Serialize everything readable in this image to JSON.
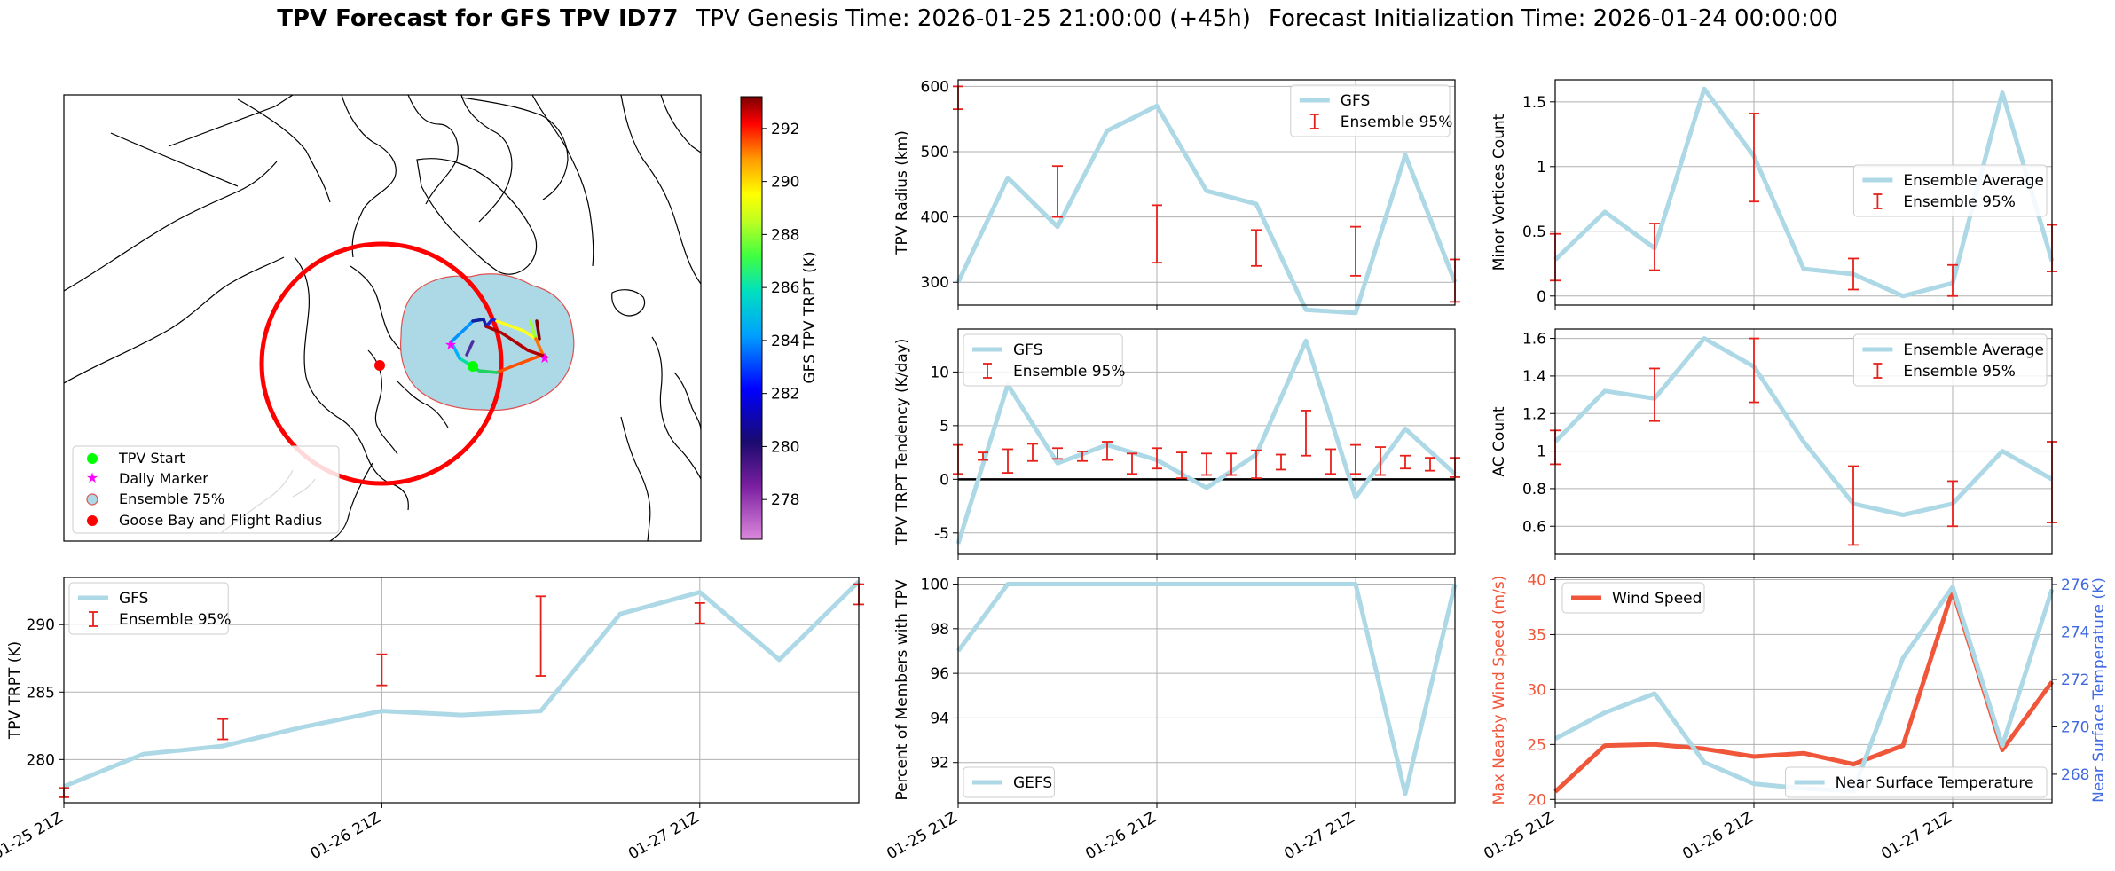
{
  "figure": {
    "title_bold": "TPV Forecast for GFS TPV ID77",
    "title_genesis": "TPV Genesis Time: 2026-01-25 21:00:00 (+45h)",
    "title_init": "Forecast Initialization Time: 2026-01-24 00:00:00"
  },
  "time_ticks": [
    "01-25 21Z",
    "01-26 21Z",
    "01-27 21Z"
  ],
  "map": {
    "colorbar_label": "GFS TPV TRPT (K)",
    "colorbar_ticks": [
      278,
      280,
      282,
      284,
      286,
      288,
      290,
      292
    ],
    "colorbar_range": [
      276.5,
      293.2
    ],
    "legend": [
      "TPV Start",
      "Daily Marker",
      "Ensemble 75%",
      "Goose Bay and Flight Radius"
    ],
    "colors": {
      "start": "#00ff00",
      "daily": "#ff00ff",
      "ensemble_fill": "#add8e6",
      "goose": "#ff0000"
    }
  },
  "chart_data": [
    {
      "id": "radius",
      "type": "line",
      "ylabel": "TPV Radius (km)",
      "ylim": [
        265,
        610
      ],
      "yticks": [
        300,
        400,
        500,
        600
      ],
      "x": [
        0,
        1,
        2,
        3,
        4,
        5,
        6,
        7,
        8,
        9,
        10
      ],
      "series": [
        {
          "name": "GFS",
          "values": [
            300,
            460,
            385,
            532,
            570,
            440,
            420,
            258,
            253,
            495,
            300
          ]
        }
      ],
      "errorbars": {
        "name": "Ensemble 95%",
        "x": [
          0,
          2,
          4,
          6,
          8,
          10
        ],
        "low": [
          565,
          400,
          330,
          325,
          310,
          270
        ],
        "high": [
          600,
          478,
          418,
          380,
          385,
          335
        ]
      },
      "legend": [
        "GFS",
        "Ensemble 95%"
      ]
    },
    {
      "id": "tendency",
      "type": "line",
      "ylabel": "TPV TRPT Tendency (K/day)",
      "ylim": [
        -7,
        14
      ],
      "yticks": [
        -5,
        0,
        5,
        10
      ],
      "x": [
        0,
        1,
        2,
        3,
        4,
        5,
        6,
        7,
        8,
        9,
        10
      ],
      "series": [
        {
          "name": "GFS",
          "values": [
            -6,
            8.8,
            1.5,
            3.2,
            1.8,
            -0.8,
            2.3,
            12.9,
            -1.7,
            4.7,
            0.5
          ]
        }
      ],
      "errorbars": {
        "name": "Ensemble 95%",
        "x": [
          0,
          0.5,
          1,
          1.5,
          2,
          2.5,
          3,
          3.5,
          4,
          4.5,
          5,
          5.5,
          6,
          6.5,
          7,
          7.5,
          8,
          8.5,
          9,
          9.5,
          10
        ],
        "low": [
          0.5,
          1.8,
          0.6,
          1.7,
          1.9,
          1.7,
          1.8,
          0.5,
          1.0,
          0.1,
          0.4,
          0.4,
          0.1,
          0.9,
          2.2,
          0.5,
          0.5,
          0.4,
          1.0,
          0.8,
          0.2
        ],
        "high": [
          3.2,
          2.5,
          2.8,
          3.3,
          2.9,
          2.6,
          3.5,
          2.4,
          2.9,
          2.5,
          2.4,
          2.4,
          2.7,
          2.3,
          6.4,
          2.8,
          3.2,
          3.0,
          2.2,
          2.0,
          2.0
        ]
      },
      "zero_line": true,
      "legend": [
        "GFS",
        "Ensemble 95%"
      ]
    },
    {
      "id": "percent",
      "type": "line",
      "ylabel": "Percent of Members with TPV",
      "ylim": [
        90.2,
        100.3
      ],
      "yticks": [
        92,
        94,
        96,
        98,
        100
      ],
      "x": [
        0,
        1,
        2,
        3,
        4,
        5,
        6,
        7,
        8,
        9,
        10
      ],
      "series": [
        {
          "name": "GEFS",
          "values": [
            97,
            100,
            100,
            100,
            100,
            100,
            100,
            100,
            100,
            90.6,
            100
          ]
        }
      ],
      "legend": [
        "GEFS"
      ]
    },
    {
      "id": "minor",
      "type": "line",
      "ylabel": "Minor Vortices Count",
      "ylim": [
        -0.07,
        1.67
      ],
      "yticks": [
        0.0,
        0.5,
        1.0,
        1.5
      ],
      "x": [
        0,
        1,
        2,
        3,
        4,
        5,
        6,
        7,
        8,
        9,
        10
      ],
      "series": [
        {
          "name": "Ensemble Average",
          "values": [
            0.28,
            0.65,
            0.37,
            1.6,
            1.08,
            0.21,
            0.17,
            0.0,
            0.1,
            1.57,
            0.27
          ]
        }
      ],
      "errorbars": {
        "name": "Ensemble 95%",
        "x": [
          0,
          2,
          4,
          6,
          8,
          10
        ],
        "low": [
          0.12,
          0.2,
          0.73,
          0.05,
          0.0,
          0.19
        ],
        "high": [
          0.48,
          0.56,
          1.41,
          0.29,
          0.24,
          0.55
        ]
      },
      "legend": [
        "Ensemble Average",
        "Ensemble 95%"
      ]
    },
    {
      "id": "ac",
      "type": "line",
      "ylabel": "AC Count",
      "ylim": [
        0.45,
        1.65
      ],
      "yticks": [
        0.6,
        0.8,
        1.0,
        1.2,
        1.4,
        1.6
      ],
      "x": [
        0,
        1,
        2,
        3,
        4,
        5,
        6,
        7,
        8,
        9,
        10
      ],
      "series": [
        {
          "name": "Ensemble Average",
          "values": [
            1.05,
            1.32,
            1.28,
            1.6,
            1.45,
            1.05,
            0.72,
            0.66,
            0.72,
            1.0,
            0.85
          ]
        }
      ],
      "errorbars": {
        "name": "Ensemble 95%",
        "x": [
          0,
          2,
          4,
          6,
          8,
          10
        ],
        "low": [
          0.93,
          1.16,
          1.26,
          0.5,
          0.6,
          0.62
        ],
        "high": [
          1.11,
          1.44,
          1.6,
          0.92,
          0.84,
          1.05
        ]
      },
      "legend": [
        "Ensemble Average",
        "Ensemble 95%"
      ]
    },
    {
      "id": "trpt",
      "type": "line",
      "ylabel": "TPV TRPT (K)",
      "ylim": [
        276.8,
        293.5
      ],
      "yticks": [
        280,
        285,
        290
      ],
      "x": [
        0,
        1,
        2,
        3,
        4,
        5,
        6,
        7,
        8,
        9,
        10
      ],
      "series": [
        {
          "name": "GFS",
          "values": [
            278,
            280.4,
            281,
            282.4,
            283.6,
            283.3,
            283.6,
            290.8,
            292.4,
            287.4,
            293.2
          ]
        }
      ],
      "errorbars": {
        "name": "Ensemble 95%",
        "x": [
          0,
          2,
          4,
          6,
          8,
          10
        ],
        "low": [
          277.2,
          281.5,
          285.5,
          286.2,
          290.1,
          291.5
        ],
        "high": [
          277.9,
          283,
          287.8,
          292.1,
          291.6,
          293.0
        ]
      },
      "legend": [
        "GFS",
        "Ensemble 95%"
      ]
    },
    {
      "id": "wind",
      "type": "line",
      "ylabel": "Max Nearby Wind Speed (m/s)",
      "ylabel_right": "Near Surface Temperature (K)",
      "ylim": [
        19.7,
        40.2
      ],
      "yticks": [
        20,
        25,
        30,
        35,
        40
      ],
      "ylim_right": [
        266.8,
        276.3
      ],
      "yticks_right": [
        268,
        270,
        272,
        274,
        276
      ],
      "x": [
        0,
        1,
        2,
        3,
        4,
        5,
        6,
        7,
        8,
        9,
        10
      ],
      "series": [
        {
          "name": "Wind Speed",
          "axis": "left",
          "values": [
            20.7,
            24.9,
            25.0,
            24.6,
            23.9,
            24.2,
            23.2,
            24.9,
            39.0,
            24.5,
            30.7
          ]
        },
        {
          "name": "Near Surface Temperature",
          "axis": "right",
          "values": [
            269.5,
            270.6,
            271.4,
            268.5,
            267.6,
            267.4,
            267.3,
            272.9,
            275.9,
            269.2,
            275.8
          ]
        }
      ],
      "colors": {
        "left": "#f0563a",
        "right": "#4169e1"
      },
      "legend": [
        "Wind Speed",
        "Near Surface Temperature"
      ]
    }
  ]
}
